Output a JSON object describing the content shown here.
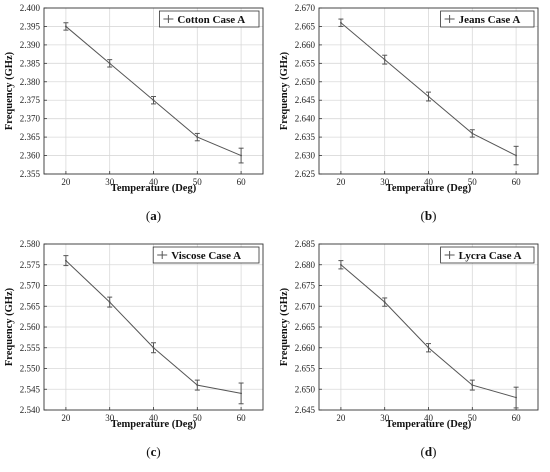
{
  "chart_data": [
    {
      "type": "line",
      "caption": "(a)",
      "xlabel": "Temperature (Deg)",
      "ylabel": "Frequency (GHz)",
      "legend": "Cotton Case A",
      "legend_position": "top-right",
      "grid": true,
      "x": [
        20,
        30,
        40,
        50,
        60
      ],
      "xticks": [
        "20",
        "30",
        "40",
        "50",
        "60"
      ],
      "yticks": [
        "2.355",
        "2.360",
        "2.365",
        "2.370",
        "2.375",
        "2.380",
        "2.385",
        "2.390",
        "2.395",
        "2.400"
      ],
      "ylim": [
        2.355,
        2.4
      ],
      "series": [
        {
          "values": [
            2.395,
            2.385,
            2.375,
            2.365,
            2.36
          ],
          "errors": [
            0.001,
            0.001,
            0.001,
            0.001,
            0.002
          ]
        }
      ]
    },
    {
      "type": "line",
      "caption": "(b)",
      "xlabel": "Temperature (Deg)",
      "ylabel": "Frequency (GHz)",
      "legend": "Jeans Case A",
      "legend_position": "top-right",
      "grid": true,
      "x": [
        20,
        30,
        40,
        50,
        60
      ],
      "xticks": [
        "20",
        "30",
        "40",
        "50",
        "60"
      ],
      "yticks": [
        "2.625",
        "2.630",
        "2.635",
        "2.640",
        "2.645",
        "2.650",
        "2.655",
        "2.660",
        "2.665",
        "2.670"
      ],
      "ylim": [
        2.625,
        2.67
      ],
      "series": [
        {
          "values": [
            2.666,
            2.656,
            2.646,
            2.636,
            2.63
          ],
          "errors": [
            0.001,
            0.0012,
            0.0012,
            0.001,
            0.0025
          ]
        }
      ]
    },
    {
      "type": "line",
      "caption": "(c)",
      "xlabel": "Temperature (Deg)",
      "ylabel": "Frequency (GHz)",
      "legend": "Viscose Case A",
      "legend_position": "top-right",
      "grid": true,
      "x": [
        20,
        30,
        40,
        50,
        60
      ],
      "xticks": [
        "20",
        "30",
        "40",
        "50",
        "60"
      ],
      "yticks": [
        "2.540",
        "2.545",
        "2.550",
        "2.555",
        "2.560",
        "2.565",
        "2.570",
        "2.575",
        "2.580"
      ],
      "ylim": [
        2.54,
        2.58
      ],
      "series": [
        {
          "values": [
            2.576,
            2.566,
            2.555,
            2.546,
            2.544
          ],
          "errors": [
            0.0012,
            0.0012,
            0.0012,
            0.0012,
            0.0025
          ]
        }
      ]
    },
    {
      "type": "line",
      "caption": "(d)",
      "xlabel": "Temperature (Deg)",
      "ylabel": "Frequency (GHz)",
      "legend": "Lycra Case A",
      "legend_position": "top-right",
      "grid": true,
      "x": [
        20,
        30,
        40,
        50,
        60
      ],
      "xticks": [
        "20",
        "30",
        "40",
        "50",
        "60"
      ],
      "yticks": [
        "2.645",
        "2.650",
        "2.655",
        "2.660",
        "2.665",
        "2.670",
        "2.675",
        "2.680",
        "2.685"
      ],
      "ylim": [
        2.645,
        2.685
      ],
      "series": [
        {
          "values": [
            2.68,
            2.671,
            2.66,
            2.651,
            2.648
          ],
          "errors": [
            0.001,
            0.001,
            0.001,
            0.0012,
            0.0025
          ]
        }
      ]
    }
  ]
}
